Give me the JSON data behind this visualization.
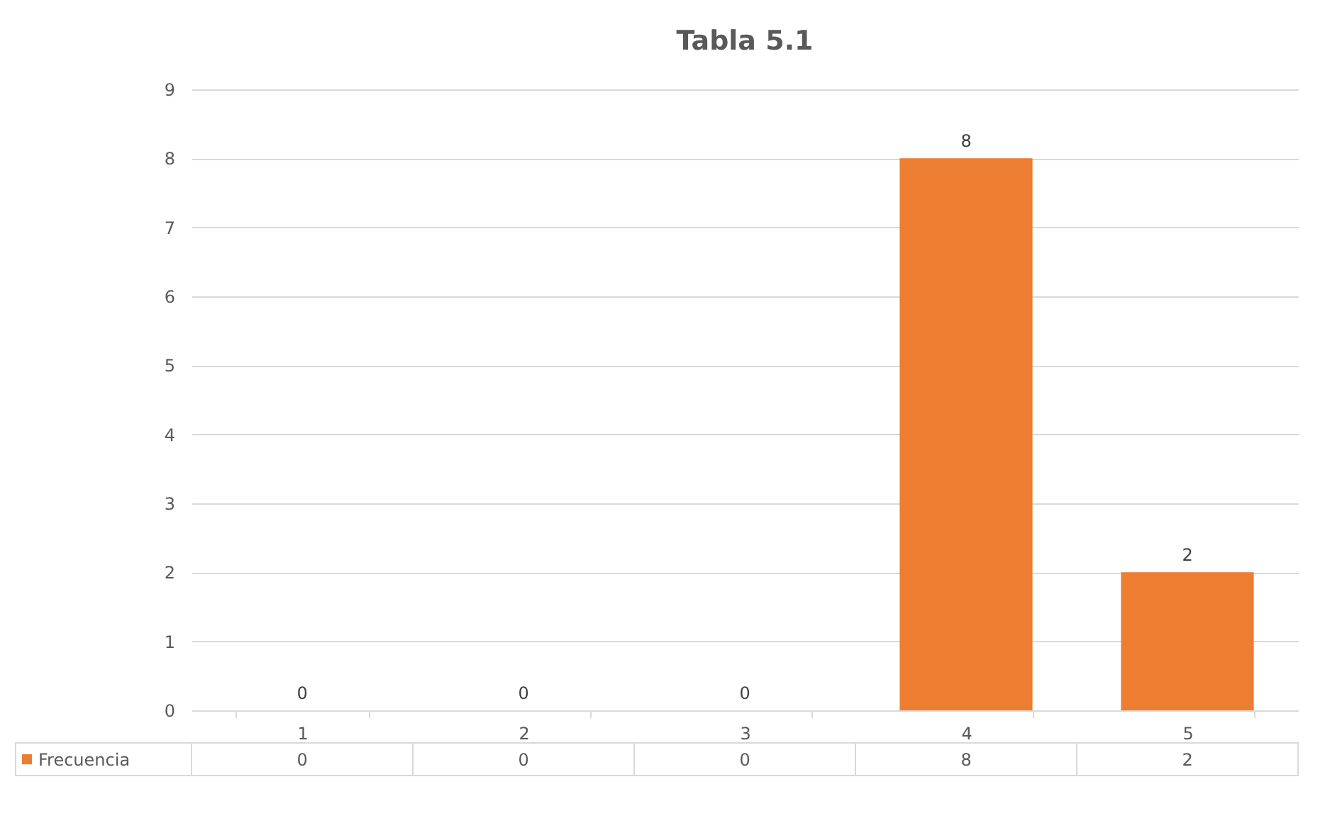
{
  "chart_data": {
    "type": "bar",
    "title": "Tabla 5.1",
    "categories": [
      "1",
      "2",
      "3",
      "4",
      "5"
    ],
    "series": [
      {
        "name": "Frecuencia",
        "color": "#ed7d31",
        "values": [
          0,
          0,
          0,
          8,
          2
        ]
      }
    ],
    "annotations": [
      "0",
      "0",
      "0",
      "8",
      "2"
    ],
    "ylim": [
      0,
      9
    ],
    "yticks": [
      0,
      1,
      2,
      3,
      4,
      5,
      6,
      7,
      8,
      9
    ],
    "grid": "y",
    "data_labels": true,
    "legend": "bottom"
  }
}
